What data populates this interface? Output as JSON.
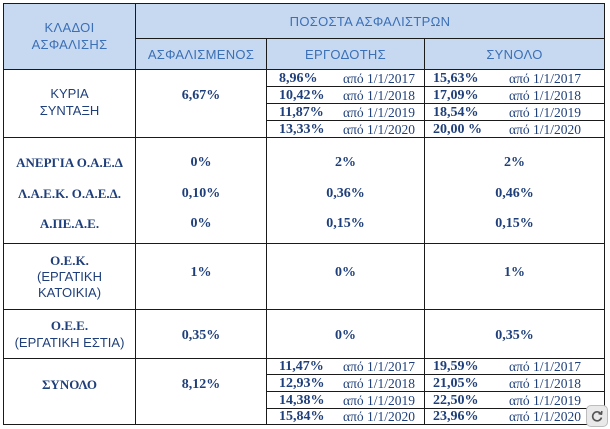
{
  "headers": {
    "branches": [
      "ΚΛΑΔΟΙ",
      "ΑΣΦΑΛΙΣΗΣ"
    ],
    "rates_title": "ΠΟΣΟΣΤΑ ΑΣΦΑΛΙΣΤΡΩΝ",
    "insured": "ΑΣΦΑΛΙΣΜΕΝΟΣ",
    "employer": "ΕΡΓΟΔΟΤΗΣ",
    "total": "ΣΥΝΟΛΟ"
  },
  "rows": {
    "main_pension": {
      "label": [
        "ΚΥΡΙΑ",
        "ΣΥΝΤΑΞΗ"
      ],
      "insured": "6,67%",
      "employer": [
        {
          "rate": "8,96%",
          "date": "από 1/1/2017"
        },
        {
          "rate": "10,42%",
          "date": "από 1/1/2018"
        },
        {
          "rate": "11,87%",
          "date": "από 1/1/2019"
        },
        {
          "rate": "13,33%",
          "date": "από 1/1/2020"
        }
      ],
      "total": [
        {
          "rate": "15,63%",
          "date": "από 1/1/2017"
        },
        {
          "rate": "17,09%",
          "date": "από 1/1/2018"
        },
        {
          "rate": "18,54%",
          "date": "από 1/1/2019"
        },
        {
          "rate": "20,00 %",
          "date": "από 1/1/2020"
        }
      ]
    },
    "unemployment": {
      "label": "ΑΝΕΡΓΙΑ Ο.Α.Ε.Δ",
      "insured": "0%",
      "employer": "2%",
      "total": "2%"
    },
    "laek": {
      "label": "Λ.Α.Ε.Κ. Ο.Α.Ε.Δ.",
      "insured": "0,10%",
      "employer": "0,36%",
      "total": "0,46%"
    },
    "apeae": {
      "label": "Α.ΠΕ.Α.Ε.",
      "insured": "0%",
      "employer": "0,15%",
      "total": "0,15%"
    },
    "oek": {
      "label": [
        "Ο.Ε.Κ.",
        "(ΕΡΓΑΤΙΚΗ",
        "ΚΑΤΟΙΚΙΑ)"
      ],
      "insured": "1%",
      "employer": "0%",
      "total": "1%"
    },
    "oee": {
      "label": [
        "Ο.Ε.Ε.",
        "(ΕΡΓΑΤΙΚΗ ΕΣΤΙΑ)"
      ],
      "insured": "0,35%",
      "employer": "0%",
      "total": "0,35%"
    },
    "grand_total": {
      "label": "ΣΥΝΟΛΟ",
      "insured": "8,12%",
      "employer": [
        {
          "rate": "11,47%",
          "date": "από 1/1/2017"
        },
        {
          "rate": "12,93%",
          "date": "από 1/1/2018"
        },
        {
          "rate": "14,38%",
          "date": "από 1/1/2019"
        },
        {
          "rate": "15,84%",
          "date": "από 1/1/2020"
        }
      ],
      "total": [
        {
          "rate": "19,59%",
          "date": "από 1/1/2017"
        },
        {
          "rate": "21,05%",
          "date": "από 1/1/2018"
        },
        {
          "rate": "22,50%",
          "date": "από 1/1/2019"
        },
        {
          "rate": "23,96%",
          "date": "από 1/1/2020"
        }
      ]
    }
  },
  "colors": {
    "header_bg": "#c6d9f1",
    "header_text": "#3b6fb6",
    "body_text": "#1f3f7a",
    "border": "#1a1a1a"
  },
  "icons": {
    "corner_button": "refresh-icon"
  }
}
